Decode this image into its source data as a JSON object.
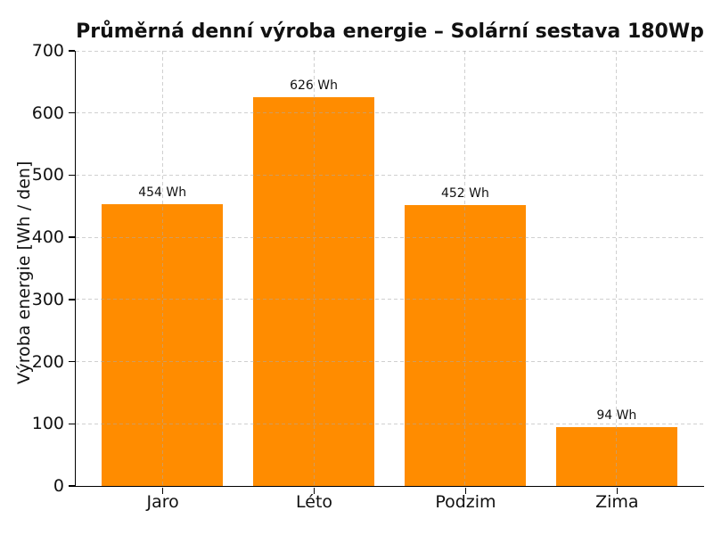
{
  "chart_data": {
    "type": "bar",
    "title": "Průměrná denní výroba energie – Solární sestava 180Wp",
    "categories": [
      "Jaro",
      "Léto",
      "Podzim",
      "Zima"
    ],
    "values": [
      454,
      626,
      452,
      94
    ],
    "bar_labels": [
      "454 Wh",
      "626 Wh",
      "452 Wh",
      "94 Wh"
    ],
    "xlabel": "",
    "ylabel": "Výroba energie [Wh / den]",
    "ylim": [
      0,
      700
    ],
    "yticks": [
      0,
      100,
      200,
      300,
      400,
      500,
      600,
      700
    ],
    "grid": {
      "visible": true,
      "axis": "both",
      "style": "dashed",
      "position": "above-bars"
    },
    "legend": {
      "visible": false
    },
    "colors": {
      "bar": "#FF8C00",
      "grid_rgba": "rgba(170,170,170,0.55)",
      "spine": "#000000",
      "text": "#111111",
      "background": "#ffffff"
    }
  }
}
